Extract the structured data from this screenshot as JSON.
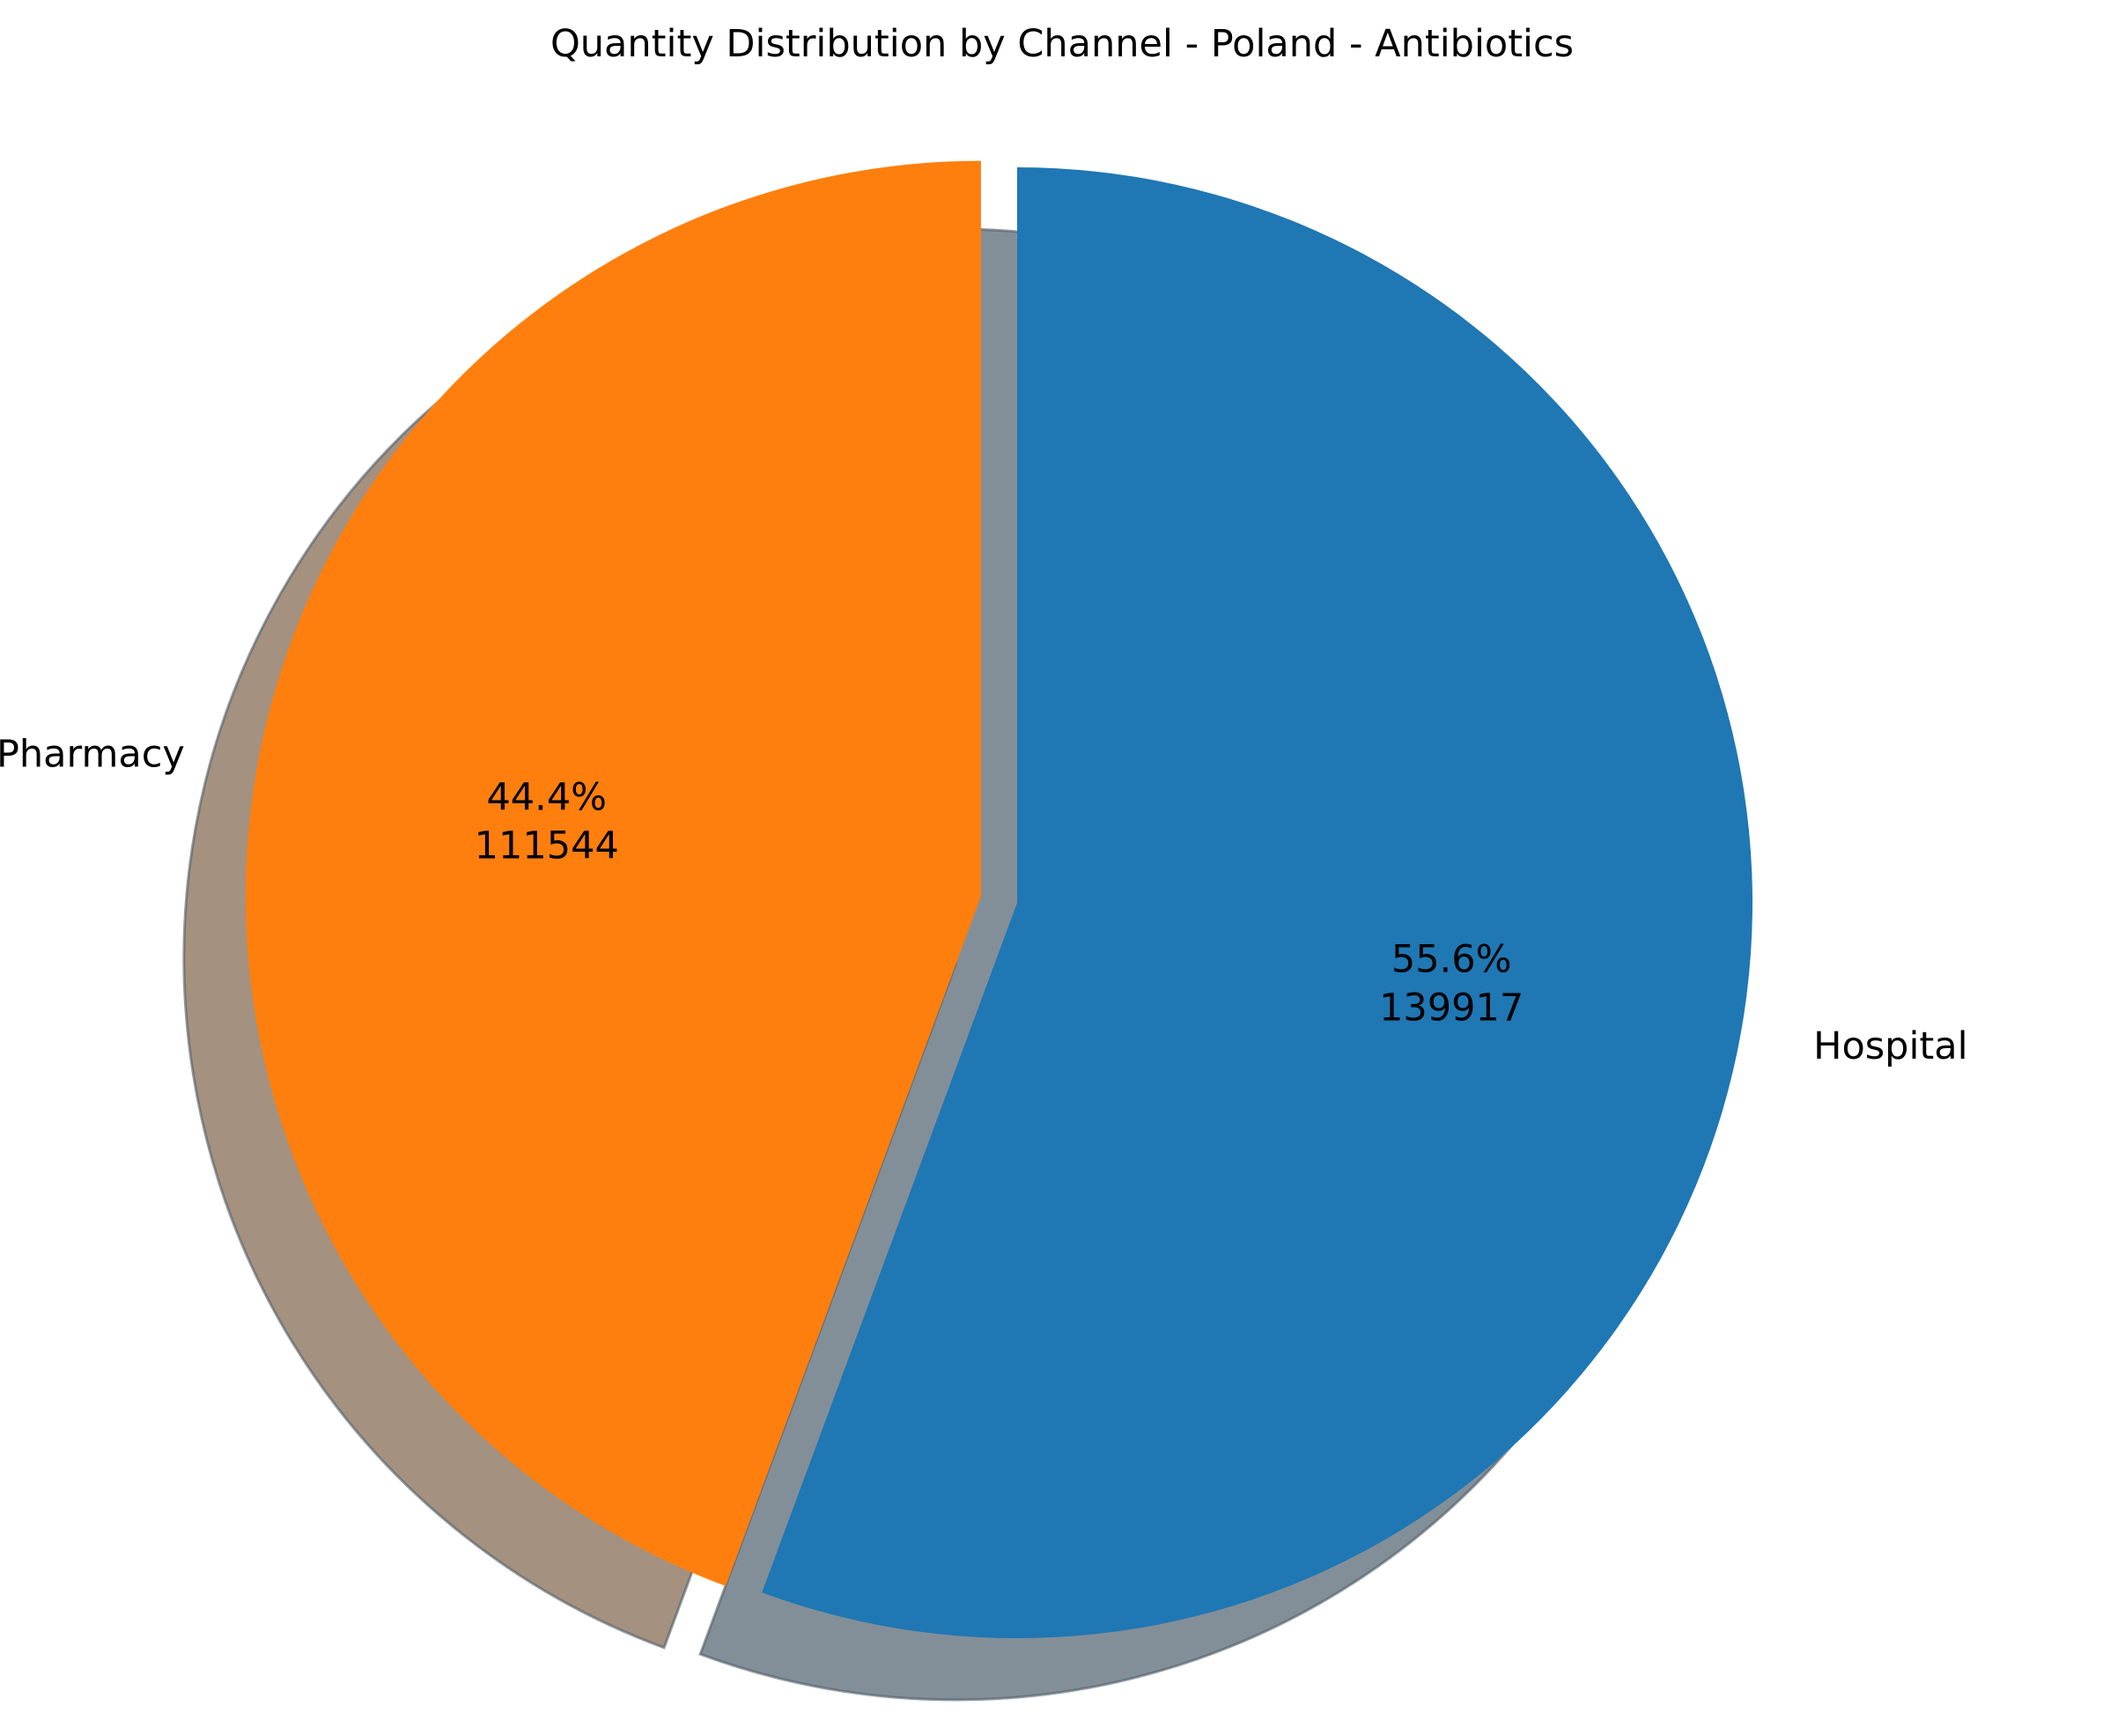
{
  "chart_data": {
    "type": "pie",
    "title": "Quantity Distribution by Channel - Poland - Antibiotics",
    "categories": [
      "Hospital",
      "Pharmacy"
    ],
    "values": [
      139917,
      111544
    ],
    "percent_labels": [
      "55.6%",
      "44.4%"
    ],
    "value_labels": [
      "139917",
      "111544"
    ],
    "colors": [
      "#1f77b4",
      "#ff7f0e"
    ],
    "shadow_colors": [
      "#838f98",
      "#a4917f"
    ],
    "explode": [
      0,
      0.05
    ],
    "start_angle_deg": 90,
    "direction": "clockwise",
    "shadow": true,
    "legend": "none"
  }
}
